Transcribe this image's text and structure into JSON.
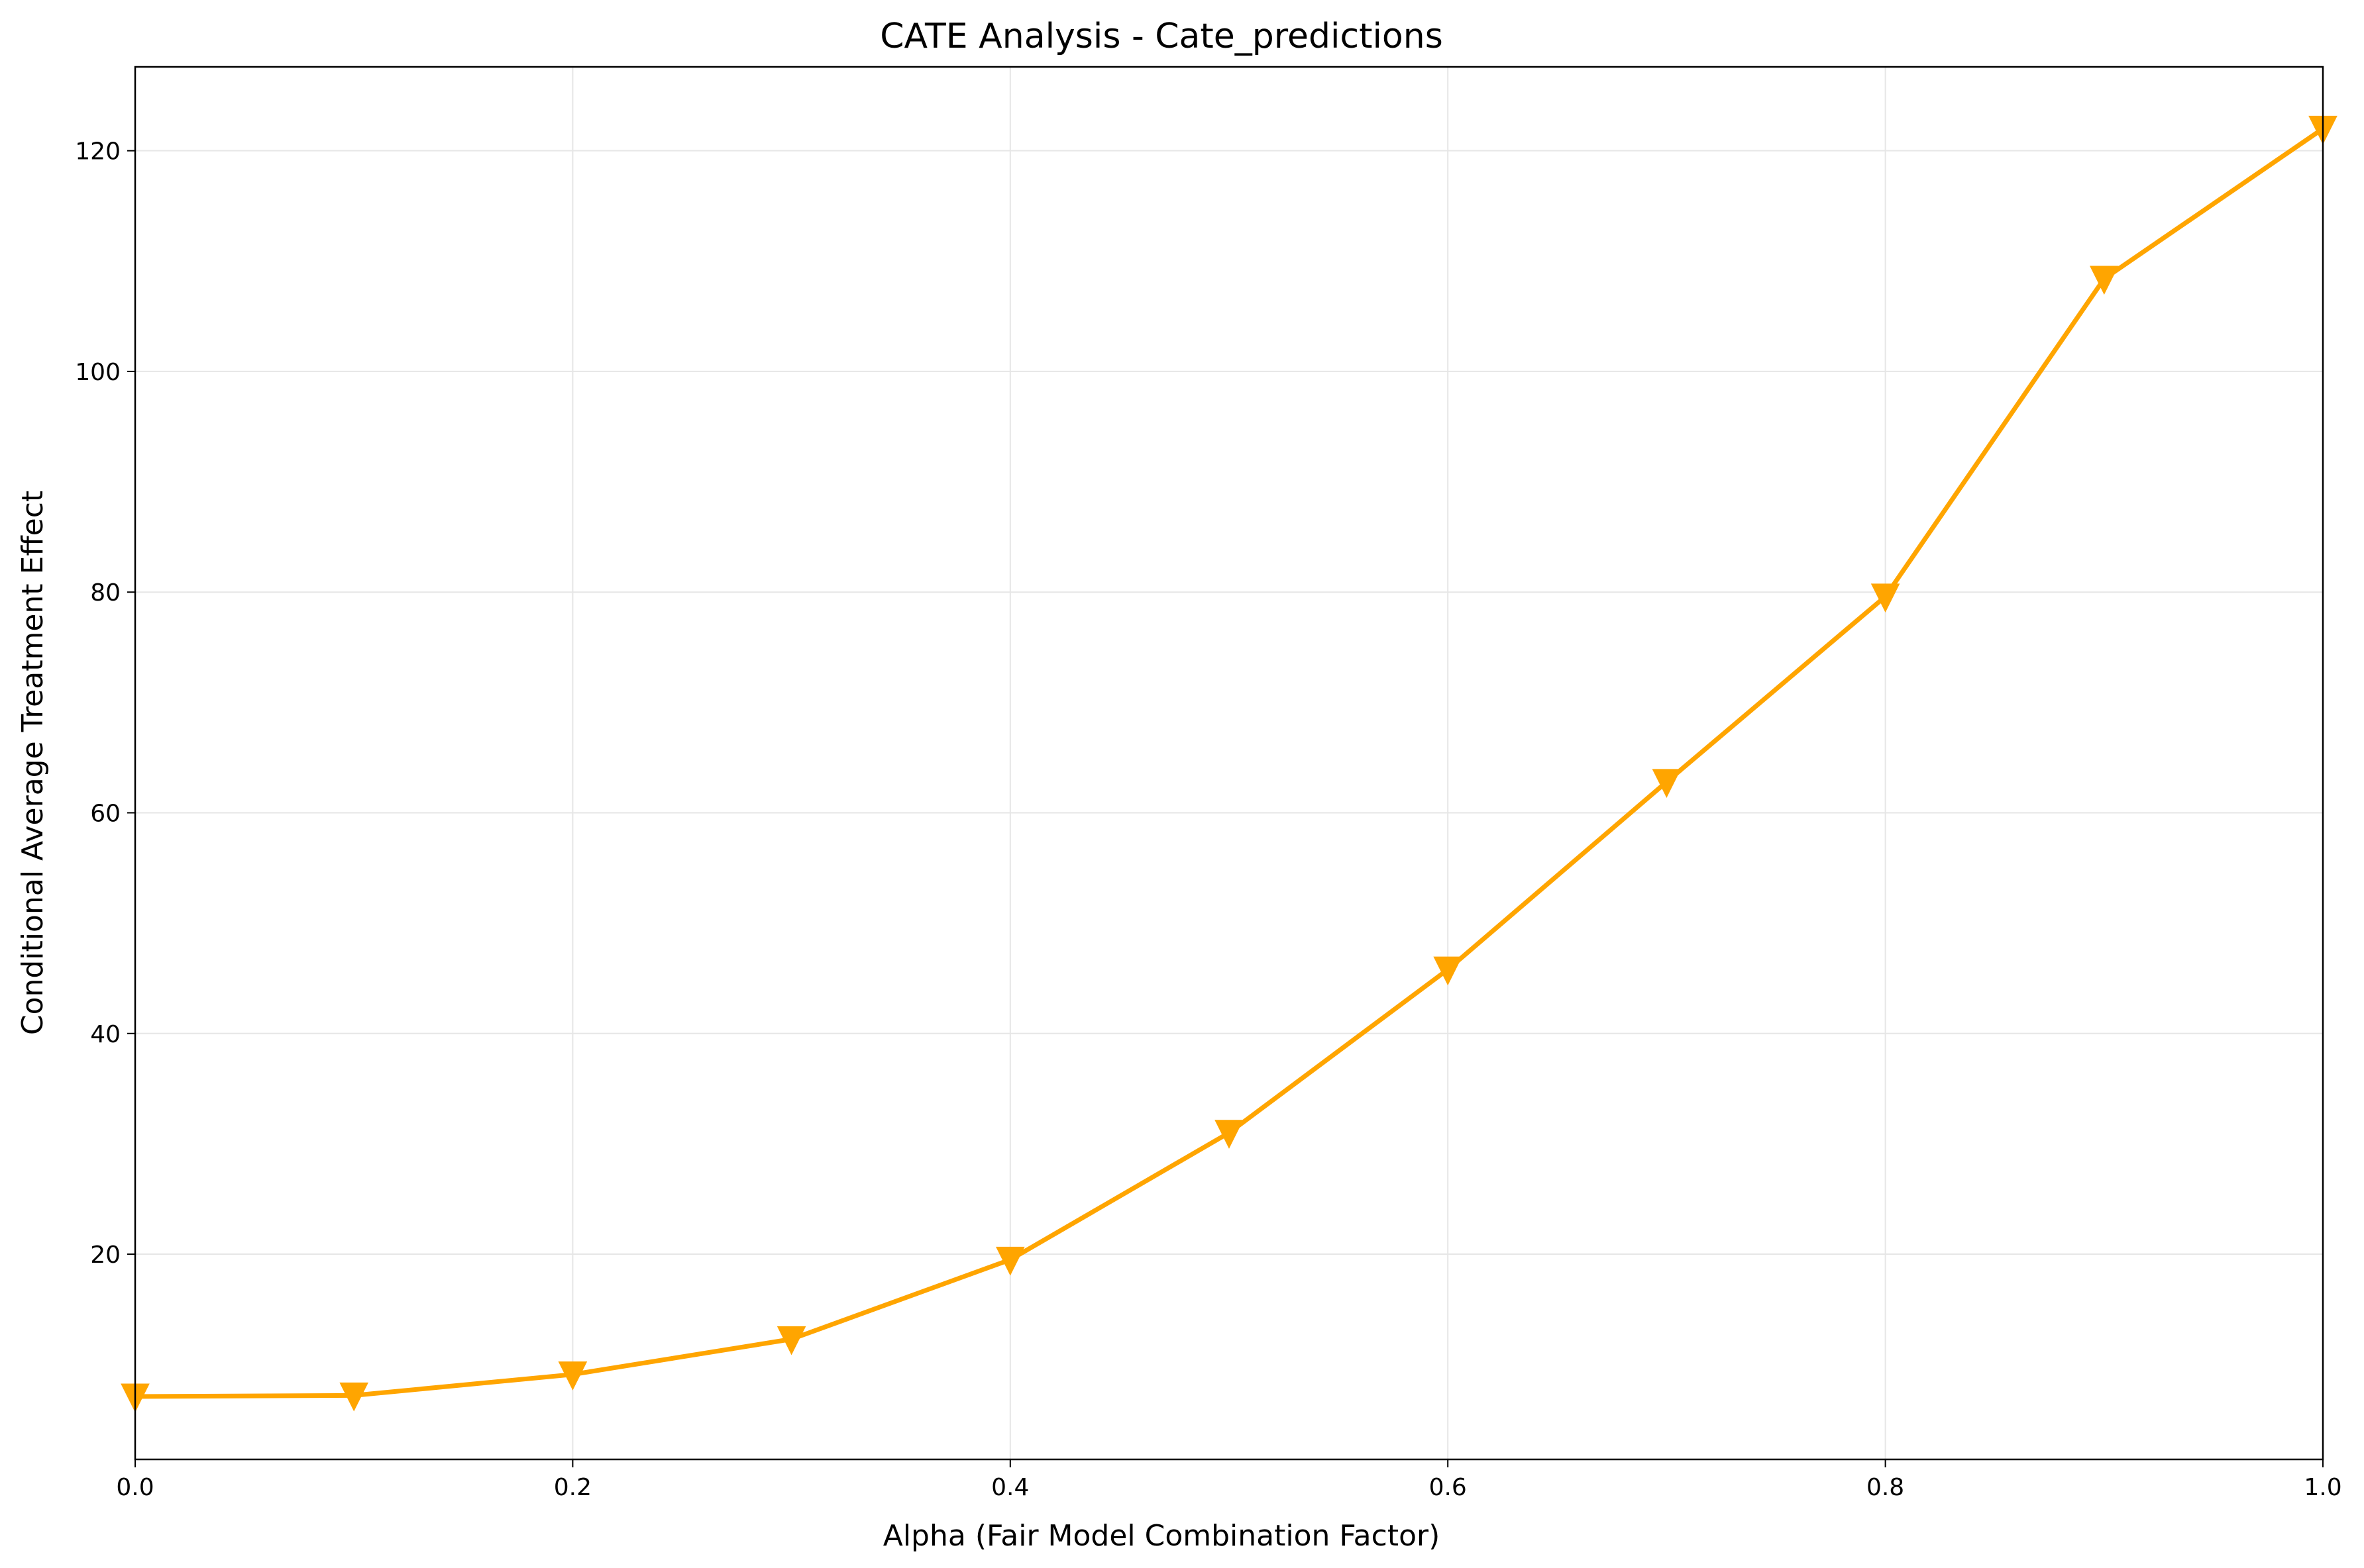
{
  "chart_data": {
    "type": "line",
    "title": "CATE Analysis - Cate_predictions",
    "xlabel": "Alpha (Fair Model Combination Factor)",
    "ylabel": "Conditional Average Treatment Effect",
    "xlim": [
      0.0,
      1.0
    ],
    "ylim": [
      1.4,
      127.6
    ],
    "xticks": [
      "0.0",
      "0.2",
      "0.4",
      "0.6",
      "0.8",
      "1.0"
    ],
    "yticks": [
      "20",
      "40",
      "60",
      "80",
      "100",
      "120"
    ],
    "grid": true,
    "legend": "none",
    "series": [
      {
        "color": "#FFA500",
        "marker": "triangle-down",
        "x": [
          0.0,
          0.1,
          0.2,
          0.3,
          0.4,
          0.5,
          0.6,
          0.7,
          0.8,
          0.9,
          1.0
        ],
        "y": [
          7.1,
          7.2,
          9.1,
          12.3,
          19.5,
          31.0,
          45.8,
          62.8,
          79.6,
          108.4,
          122.0
        ]
      }
    ]
  }
}
